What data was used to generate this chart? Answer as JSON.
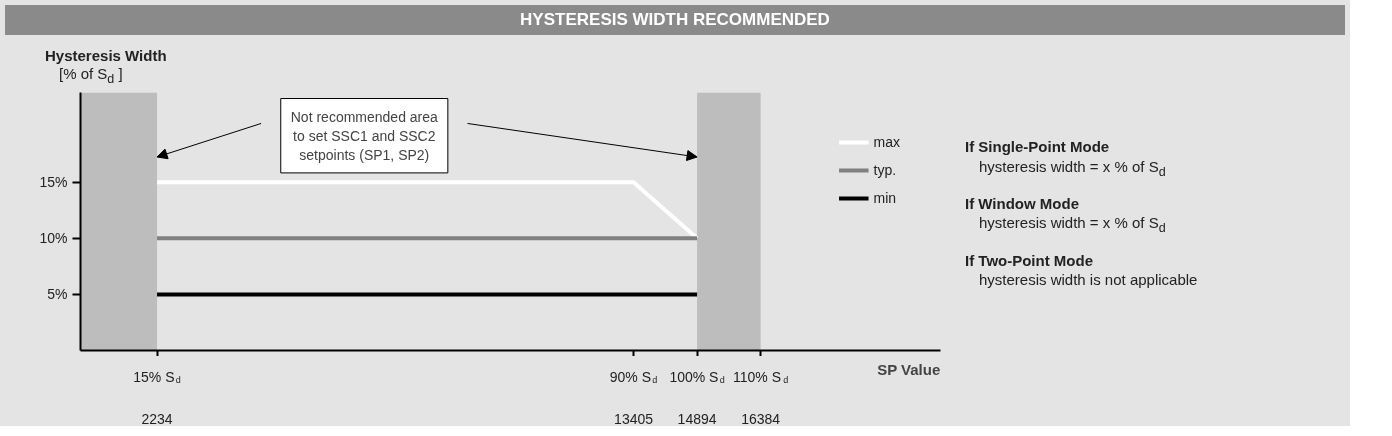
{
  "chart_data": {
    "type": "line",
    "title": "HYSTERESIS WIDTH RECOMMENDED",
    "ylabel": "Hysteresis Width\n[% of S$_{d}$ ]",
    "xlabel": "SP Value",
    "xlim": [
      440,
      20600
    ],
    "ylim": [
      0,
      23
    ],
    "xticks": [
      2234,
      13405,
      14894,
      16384
    ],
    "yticks": [
      {
        "value": 5,
        "label": "5%"
      },
      {
        "value": 10,
        "label": "10%"
      },
      {
        "value": 15,
        "label": "15%"
      }
    ],
    "series": [
      {
        "name": "max",
        "color": "#ffffff",
        "x": [
          2234,
          13405,
          14894
        ],
        "values": [
          15,
          15,
          10
        ]
      },
      {
        "name": "typ.",
        "color": "#808080",
        "x": [
          2234,
          14894
        ],
        "values": [
          10,
          10
        ]
      },
      {
        "name": "min",
        "color": "#000000",
        "x": [
          2234,
          14894
        ],
        "values": [
          5,
          5
        ]
      }
    ],
    "bands": [
      {
        "axis": "x",
        "from": 440,
        "to": 2234,
        "color": "#bdbdbd"
      },
      {
        "axis": "x",
        "from": 14894,
        "to": 16384,
        "color": "#bdbdbd"
      }
    ],
    "annotations": [
      "Not recommended area\nto set SSC1 and SSC2\nsetpoints (SP1, SP2)",
      "If Single-Point Mode\nhysteresis width = x % of S$_{d}$",
      "If Window Mode\nhysteresis width = x % of S$_{d}$",
      "If Two-Point Mode\nhysteresis width is not applicable",
      "15% S$_{d}$",
      "90% S$_{d}$",
      "100% S$_{d}$",
      "110% S$_{d}$"
    ],
    "legend": "top right",
    "grid": false,
    "line_style": "solid",
    "marker": "none"
  }
}
